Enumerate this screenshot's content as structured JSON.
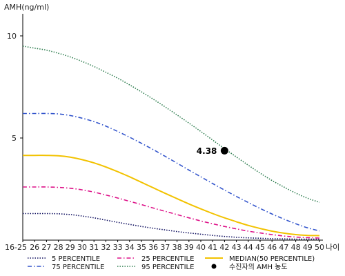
{
  "chart_data": {
    "type": "line",
    "ylabel": "AMH(ng/ml)",
    "xlabel": "나이",
    "ylim": [
      0,
      11
    ],
    "y_ticks": [
      5,
      10
    ],
    "x_ticks": [
      "16-25",
      "26",
      "27",
      "28",
      "29",
      "30",
      "31",
      "32",
      "33",
      "34",
      "35",
      "36",
      "37",
      "38",
      "39",
      "40",
      "41",
      "42",
      "43",
      "44",
      "45",
      "46",
      "47",
      "48",
      "49",
      "50"
    ],
    "x": [
      25,
      26,
      27,
      28,
      29,
      30,
      31,
      32,
      33,
      34,
      35,
      36,
      37,
      38,
      39,
      40,
      41,
      42,
      43,
      44,
      45,
      46,
      47,
      48,
      49,
      50
    ],
    "grid": false,
    "series": [
      {
        "name": "5 PERCENTILE",
        "color": "#101060",
        "style": "dot",
        "values": [
          1.3,
          1.3,
          1.3,
          1.29,
          1.25,
          1.18,
          1.09,
          0.98,
          0.87,
          0.77,
          0.67,
          0.58,
          0.5,
          0.42,
          0.35,
          0.29,
          0.23,
          0.18,
          0.14,
          0.11,
          0.09,
          0.07,
          0.06,
          0.05,
          0.05,
          0.05
        ]
      },
      {
        "name": "75 PERCENTILE",
        "color": "#3355cc",
        "style": "dashdot",
        "values": [
          6.2,
          6.2,
          6.2,
          6.18,
          6.1,
          5.97,
          5.8,
          5.58,
          5.32,
          5.04,
          4.74,
          4.43,
          4.1,
          3.77,
          3.43,
          3.1,
          2.77,
          2.45,
          2.14,
          1.84,
          1.55,
          1.28,
          1.03,
          0.8,
          0.6,
          0.45
        ]
      },
      {
        "name": "25 PERCENTILE",
        "color": "#dd1188",
        "style": "dashdot",
        "values": [
          2.6,
          2.6,
          2.6,
          2.58,
          2.54,
          2.46,
          2.35,
          2.21,
          2.06,
          1.9,
          1.74,
          1.57,
          1.41,
          1.25,
          1.09,
          0.94,
          0.8,
          0.67,
          0.55,
          0.44,
          0.35,
          0.27,
          0.2,
          0.15,
          0.12,
          0.1
        ]
      },
      {
        "name": "95 PERCENTILE",
        "color": "#2e7d4f",
        "style": "dot",
        "values": [
          9.5,
          9.4,
          9.3,
          9.15,
          8.97,
          8.75,
          8.5,
          8.22,
          7.93,
          7.6,
          7.26,
          6.9,
          6.52,
          6.13,
          5.73,
          5.32,
          4.9,
          4.48,
          4.07,
          3.67,
          3.28,
          2.92,
          2.6,
          2.3,
          2.05,
          1.85
        ]
      },
      {
        "name": "MEDIAN(50 PERCENTILE)",
        "color": "#f2c200",
        "style": "solid",
        "values": [
          4.15,
          4.15,
          4.15,
          4.13,
          4.06,
          3.94,
          3.78,
          3.58,
          3.35,
          3.1,
          2.83,
          2.56,
          2.29,
          2.03,
          1.77,
          1.53,
          1.3,
          1.09,
          0.9,
          0.72,
          0.57,
          0.44,
          0.34,
          0.27,
          0.23,
          0.22
        ]
      }
    ],
    "marker": {
      "label": "수진자의 AMH 농도",
      "x": 42,
      "y": 4.38,
      "text": "4.38",
      "color": "#000000"
    },
    "legend": {
      "placement": "bottom",
      "order": [
        "5 PERCENTILE",
        "25 PERCENTILE",
        "MEDIAN(50 PERCENTILE)",
        "75 PERCENTILE",
        "95 PERCENTILE",
        "수진자의 AMH 농도"
      ]
    }
  }
}
